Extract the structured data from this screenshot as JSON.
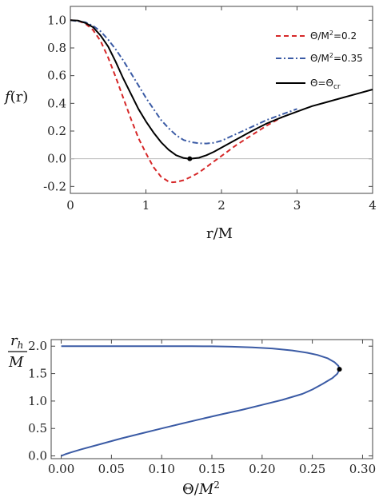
{
  "chart_data": [
    {
      "type": "line",
      "ylabel_main": "f",
      "ylabel_paren": "(r)",
      "xlabel": "r/M",
      "xlim": [
        0,
        4
      ],
      "ylim": [
        -0.25,
        1.1
      ],
      "xticks": [
        "0",
        "1",
        "2",
        "3",
        "4"
      ],
      "yticks": [
        "1.0",
        "0.8",
        "0.6",
        "0.4",
        "0.2",
        "0.0",
        "-0.2"
      ],
      "legend_position": "top-right",
      "zero_line": true,
      "series": [
        {
          "legend_prefix": "Θ/M",
          "legend_sup": "2",
          "legend_suffix": "=0.2",
          "color": "#d62728",
          "style": "dashed",
          "points": [
            [
              0,
              1.0
            ],
            [
              0.1,
              0.996
            ],
            [
              0.2,
              0.975
            ],
            [
              0.3,
              0.93
            ],
            [
              0.4,
              0.85
            ],
            [
              0.5,
              0.73
            ],
            [
              0.6,
              0.59
            ],
            [
              0.7,
              0.44
            ],
            [
              0.8,
              0.29
            ],
            [
              0.9,
              0.15
            ],
            [
              1.0,
              0.04
            ],
            [
              1.1,
              -0.06
            ],
            [
              1.2,
              -0.13
            ],
            [
              1.3,
              -0.165
            ],
            [
              1.35,
              -0.17
            ],
            [
              1.4,
              -0.168
            ],
            [
              1.5,
              -0.155
            ],
            [
              1.6,
              -0.13
            ],
            [
              1.7,
              -0.1
            ],
            [
              1.8,
              -0.06
            ],
            [
              1.9,
              -0.02
            ],
            [
              2.0,
              0.02
            ],
            [
              2.2,
              0.1
            ],
            [
              2.4,
              0.17
            ],
            [
              2.6,
              0.24
            ],
            [
              2.8,
              0.3
            ]
          ]
        },
        {
          "legend_prefix": "Θ/M",
          "legend_sup": "2",
          "legend_suffix": "=0.35",
          "color": "#3b5ba5",
          "style": "dashdot",
          "points": [
            [
              0,
              1.0
            ],
            [
              0.2,
              0.985
            ],
            [
              0.3,
              0.96
            ],
            [
              0.4,
              0.92
            ],
            [
              0.5,
              0.86
            ],
            [
              0.6,
              0.79
            ],
            [
              0.7,
              0.71
            ],
            [
              0.8,
              0.62
            ],
            [
              0.9,
              0.53
            ],
            [
              1.0,
              0.44
            ],
            [
              1.1,
              0.36
            ],
            [
              1.2,
              0.28
            ],
            [
              1.3,
              0.22
            ],
            [
              1.4,
              0.17
            ],
            [
              1.5,
              0.135
            ],
            [
              1.6,
              0.12
            ],
            [
              1.7,
              0.112
            ],
            [
              1.8,
              0.11
            ],
            [
              1.9,
              0.115
            ],
            [
              2.0,
              0.13
            ],
            [
              2.2,
              0.18
            ],
            [
              2.4,
              0.23
            ],
            [
              2.6,
              0.28
            ],
            [
              2.8,
              0.32
            ],
            [
              3.0,
              0.36
            ]
          ]
        },
        {
          "legend_prefix": "Θ=Θ",
          "legend_sup": "",
          "legend_sub": "cr",
          "legend_suffix": "",
          "color": "#000000",
          "style": "solid",
          "points": [
            [
              0,
              1.0
            ],
            [
              0.1,
              0.998
            ],
            [
              0.2,
              0.98
            ],
            [
              0.3,
              0.95
            ],
            [
              0.4,
              0.89
            ],
            [
              0.5,
              0.81
            ],
            [
              0.6,
              0.7
            ],
            [
              0.7,
              0.58
            ],
            [
              0.8,
              0.47
            ],
            [
              0.9,
              0.36
            ],
            [
              1.0,
              0.27
            ],
            [
              1.1,
              0.19
            ],
            [
              1.2,
              0.12
            ],
            [
              1.3,
              0.065
            ],
            [
              1.4,
              0.025
            ],
            [
              1.5,
              0.005
            ],
            [
              1.58,
              0.0
            ],
            [
              1.7,
              0.007
            ],
            [
              1.8,
              0.025
            ],
            [
              1.9,
              0.05
            ],
            [
              2.0,
              0.08
            ],
            [
              2.2,
              0.14
            ],
            [
              2.4,
              0.2
            ],
            [
              2.6,
              0.255
            ],
            [
              2.8,
              0.3
            ],
            [
              3.0,
              0.34
            ],
            [
              3.2,
              0.38
            ],
            [
              3.4,
              0.41
            ],
            [
              3.6,
              0.44
            ],
            [
              3.8,
              0.47
            ],
            [
              4.0,
              0.5
            ]
          ]
        }
      ],
      "markers": [
        [
          1.58,
          0.0
        ]
      ]
    },
    {
      "type": "line",
      "ylabel_num": "r",
      "ylabel_num_sub": "h",
      "ylabel_den": "M",
      "xlabel_main": "Θ/",
      "xlabel_it": "M",
      "xlabel_sup": "2",
      "xlim": [
        -0.01,
        0.31
      ],
      "ylim": [
        -0.05,
        2.12
      ],
      "xticks": [
        [
          "0.00",
          0.0
        ],
        [
          "0.05",
          0.05
        ],
        [
          "0.10",
          0.1
        ],
        [
          "0.15",
          0.15
        ],
        [
          "0.20",
          0.2
        ],
        [
          "0.25",
          0.25
        ],
        [
          "0.30",
          0.3
        ]
      ],
      "yticks": [
        [
          "2.0",
          2.0
        ],
        [
          "1.5",
          1.5
        ],
        [
          "1.0",
          1.0
        ],
        [
          "0.5",
          0.5
        ],
        [
          "0.0",
          0.0
        ]
      ],
      "series": [
        {
          "color": "#3b5ba5",
          "style": "solid",
          "points": [
            [
              0.0,
              2.0
            ],
            [
              0.05,
              2.0
            ],
            [
              0.1,
              2.0
            ],
            [
              0.13,
              1.999
            ],
            [
              0.15,
              1.997
            ],
            [
              0.17,
              1.99
            ],
            [
              0.19,
              1.978
            ],
            [
              0.21,
              1.958
            ],
            [
              0.23,
              1.922
            ],
            [
              0.245,
              1.88
            ],
            [
              0.255,
              1.84
            ],
            [
              0.265,
              1.78
            ],
            [
              0.272,
              1.71
            ],
            [
              0.276,
              1.64
            ],
            [
              0.277,
              1.58
            ],
            [
              0.275,
              1.5
            ],
            [
              0.27,
              1.42
            ],
            [
              0.26,
              1.31
            ],
            [
              0.25,
              1.21
            ],
            [
              0.24,
              1.13
            ],
            [
              0.22,
              1.02
            ],
            [
              0.2,
              0.93
            ],
            [
              0.18,
              0.84
            ],
            [
              0.16,
              0.76
            ],
            [
              0.14,
              0.675
            ],
            [
              0.12,
              0.59
            ],
            [
              0.1,
              0.5
            ],
            [
              0.08,
              0.41
            ],
            [
              0.06,
              0.32
            ],
            [
              0.04,
              0.22
            ],
            [
              0.02,
              0.12
            ],
            [
              0.01,
              0.065
            ],
            [
              0.004,
              0.03
            ],
            [
              0.0,
              0.0
            ]
          ]
        }
      ],
      "markers": [
        [
          0.277,
          1.58
        ]
      ]
    }
  ]
}
